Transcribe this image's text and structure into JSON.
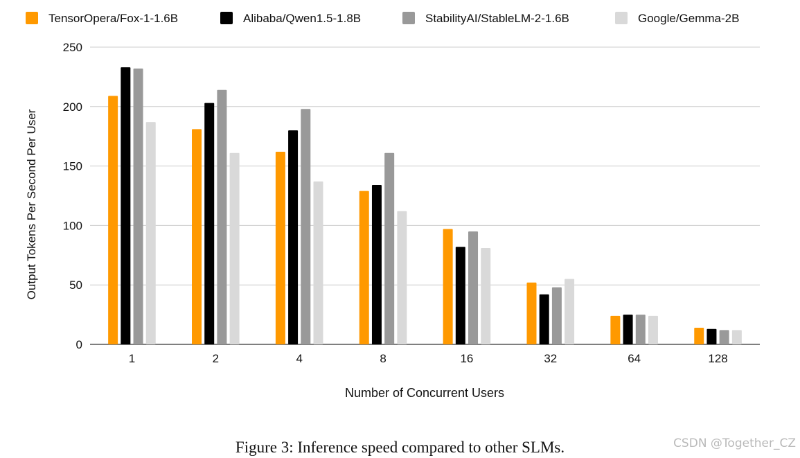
{
  "caption": "Figure 3: Inference speed compared to other SLMs.",
  "watermark": "CSDN @Together_CZ",
  "chart_data": {
    "type": "bar",
    "title": "",
    "xlabel": "Number of Concurrent Users",
    "ylabel": "Output Tokens Per Second Per User",
    "ylim": [
      0,
      250
    ],
    "yticks": [
      0,
      50,
      100,
      150,
      200,
      250
    ],
    "grid": true,
    "legend_position": "top",
    "categories": [
      "1",
      "2",
      "4",
      "8",
      "16",
      "32",
      "64",
      "128"
    ],
    "series": [
      {
        "name": "TensorOpera/Fox-1-1.6B",
        "color": "#ff9900",
        "values": [
          209,
          181,
          162,
          129,
          97,
          52,
          24,
          14
        ]
      },
      {
        "name": "Alibaba/Qwen1.5-1.8B",
        "color": "#000000",
        "values": [
          233,
          203,
          180,
          134,
          82,
          42,
          25,
          13
        ]
      },
      {
        "name": "StabilityAI/StableLM-2-1.6B",
        "color": "#999999",
        "values": [
          232,
          214,
          198,
          161,
          95,
          48,
          25,
          12
        ]
      },
      {
        "name": "Google/Gemma-2B",
        "color": "#d9d9d9",
        "values": [
          187,
          161,
          137,
          112,
          81,
          55,
          24,
          12
        ]
      }
    ]
  }
}
